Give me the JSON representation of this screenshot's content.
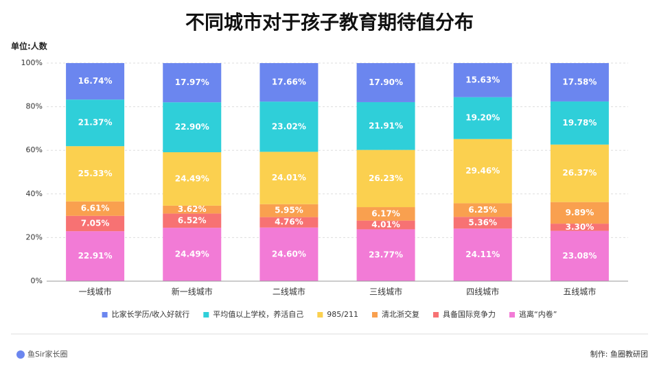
{
  "chart_data": {
    "type": "stacked_bar",
    "title": "不同城市对于孩子教育期待值分布",
    "unit": "单位:人数",
    "brand": "鱼Sir家长圈",
    "credit": "制作: 鱼圈教研团",
    "categories": [
      "一线城市",
      "新一线城市",
      "二线城市",
      "三线城市",
      "四线城市",
      "五线城市"
    ],
    "ylim": [
      0,
      100
    ],
    "yticks": [
      {
        "value": 0,
        "label": "0%"
      },
      {
        "value": 20,
        "label": "20%"
      },
      {
        "value": 40,
        "label": "40%"
      },
      {
        "value": 60,
        "label": "60%"
      },
      {
        "value": 80,
        "label": "80%"
      },
      {
        "value": 100,
        "label": "100%"
      }
    ],
    "grid": true,
    "legend": "bottom",
    "series": [
      {
        "name": "比家长学历/收入好就行",
        "color": "#6b86ef",
        "values": [
          16.74,
          17.97,
          17.66,
          17.9,
          15.63,
          17.58
        ],
        "value_labels": [
          "16.74%",
          "17.97%",
          "17.66%",
          "17.90%",
          "15.63%",
          "17.58%"
        ]
      },
      {
        "name": "平均值以上学校，养活自己",
        "color": "#2fcfd9",
        "values": [
          21.37,
          22.9,
          23.02,
          21.91,
          19.2,
          19.78
        ],
        "value_labels": [
          "21.37%",
          "22.90%",
          "23.02%",
          "21.91%",
          "19.20%",
          "19.78%"
        ]
      },
      {
        "name": "985/211",
        "color": "#fbd04f",
        "values": [
          25.33,
          24.49,
          24.01,
          26.23,
          29.46,
          26.37
        ],
        "value_labels": [
          "25.33%",
          "24.49%",
          "24.01%",
          "26.23%",
          "29.46%",
          "26.37%"
        ]
      },
      {
        "name": "清北浙交复",
        "color": "#f9a04f",
        "values": [
          6.61,
          3.62,
          5.95,
          6.17,
          6.25,
          9.89
        ],
        "value_labels": [
          "6.61%",
          "3.62%",
          "5.95%",
          "6.17%",
          "6.25%",
          "9.89%"
        ]
      },
      {
        "name": "具备国际竞争力",
        "color": "#f77273",
        "values": [
          7.05,
          6.52,
          4.76,
          4.01,
          5.36,
          3.3
        ],
        "value_labels": [
          "7.05%",
          "6.52%",
          "4.76%",
          "4.01%",
          "5.36%",
          "3.30%"
        ]
      },
      {
        "name": "逃离“内卷”",
        "color": "#f27bd6",
        "values": [
          22.91,
          24.49,
          24.6,
          23.77,
          24.11,
          23.08
        ],
        "value_labels": [
          "22.91%",
          "24.49%",
          "24.60%",
          "23.77%",
          "24.11%",
          "23.08%"
        ]
      }
    ]
  }
}
